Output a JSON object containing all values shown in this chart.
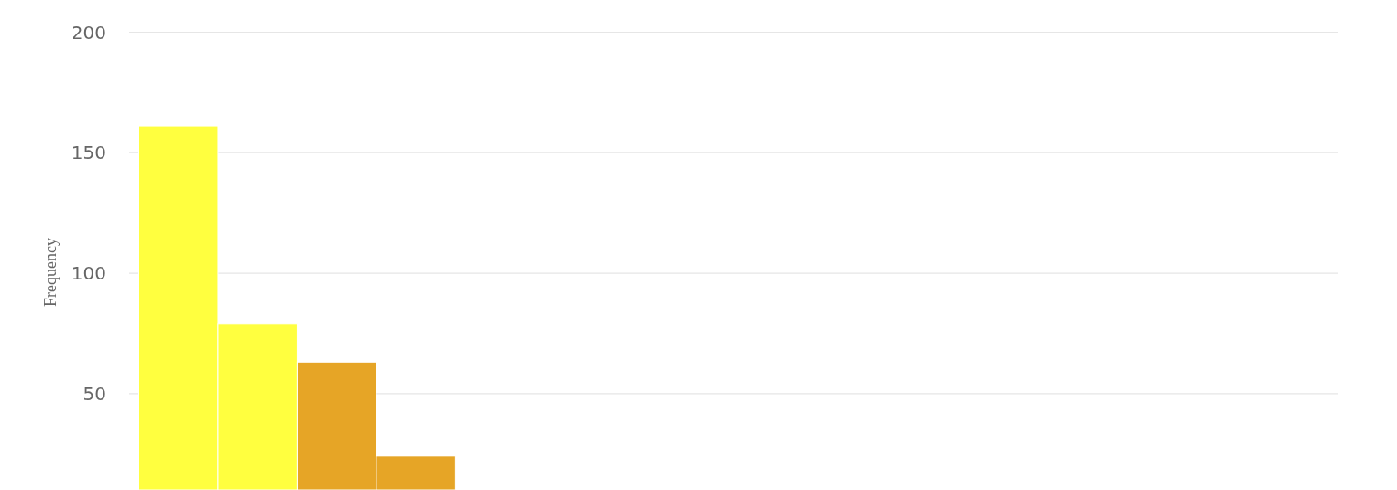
{
  "chart_data": {
    "type": "bar",
    "ylabel": "Frequency",
    "categories": [
      null,
      null,
      null,
      null,
      null,
      null,
      null,
      null,
      null,
      null,
      null,
      null,
      null,
      null,
      null
    ],
    "values": [
      161,
      79,
      63,
      24,
      null,
      null,
      null,
      null,
      null,
      null,
      null,
      null,
      null,
      null,
      null
    ],
    "colors": [
      "#ffff3f",
      "#ffff3f",
      "#e6a526",
      "#e6a526",
      null,
      null,
      null,
      null,
      null,
      null,
      null,
      null,
      null,
      null,
      null
    ],
    "ylim": [
      10,
      200
    ],
    "yticks": [
      50,
      100,
      150,
      200
    ],
    "grid": "y"
  }
}
